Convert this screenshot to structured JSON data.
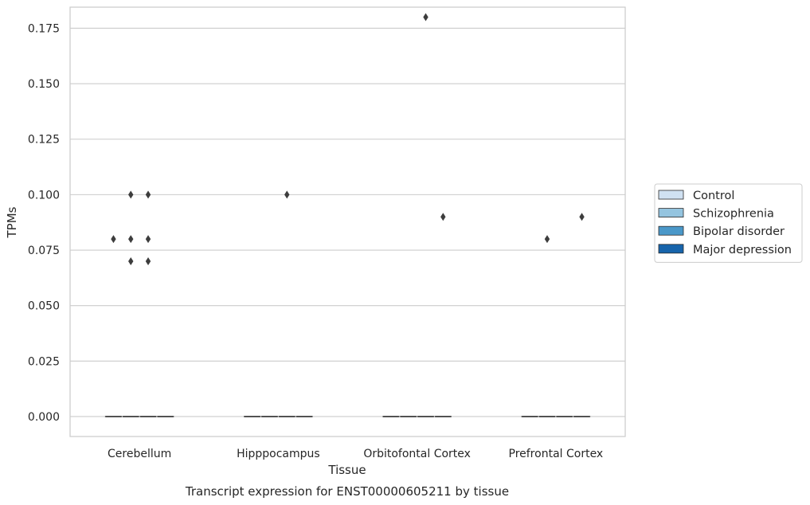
{
  "chart_data": {
    "type": "box",
    "xlabel": "Tissue",
    "ylabel": "TPMs",
    "caption": "Transcript expression for ENST00000605211 by tissue",
    "ylim": [
      -0.009,
      0.1845
    ],
    "yticks": [
      0.0,
      0.025,
      0.05,
      0.075,
      0.1,
      0.125,
      0.15,
      0.175
    ],
    "ytick_labels": [
      "0.000",
      "0.025",
      "0.050",
      "0.075",
      "0.100",
      "0.125",
      "0.150",
      "0.175"
    ],
    "grid": "horizontal",
    "legend_position": "right",
    "categories": [
      "Cerebellum",
      "Hipppocampus",
      "Orbitofontal Cortex",
      "Prefrontal Cortex"
    ],
    "series": [
      {
        "name": "Control",
        "color": "#d0e1f2",
        "median": [
          0,
          0,
          0,
          0
        ],
        "q1": [
          0,
          0,
          0,
          0
        ],
        "q3": [
          0,
          0,
          0,
          0
        ],
        "outliers": [
          [
            0.08
          ],
          [],
          [],
          []
        ]
      },
      {
        "name": "Schizophrenia",
        "color": "#94c4df",
        "median": [
          0,
          0,
          0,
          0
        ],
        "q1": [
          0,
          0,
          0,
          0
        ],
        "q3": [
          0,
          0,
          0,
          0
        ],
        "outliers": [
          [
            0.1,
            0.08,
            0.07
          ],
          [],
          [],
          [
            0.08
          ]
        ]
      },
      {
        "name": "Bipolar disorder",
        "color": "#4a98c9",
        "median": [
          0,
          0,
          0,
          0
        ],
        "q1": [
          0,
          0,
          0,
          0
        ],
        "q3": [
          0,
          0,
          0,
          0
        ],
        "outliers": [
          [
            0.1,
            0.08,
            0.07
          ],
          [
            0.1
          ],
          [
            0.18
          ],
          []
        ]
      },
      {
        "name": "Major depression",
        "color": "#1764ab",
        "median": [
          0,
          0,
          0,
          0
        ],
        "q1": [
          0,
          0,
          0,
          0
        ],
        "q3": [
          0,
          0,
          0,
          0
        ],
        "outliers": [
          [],
          [],
          [
            0.09
          ],
          [
            0.09
          ]
        ]
      }
    ]
  }
}
